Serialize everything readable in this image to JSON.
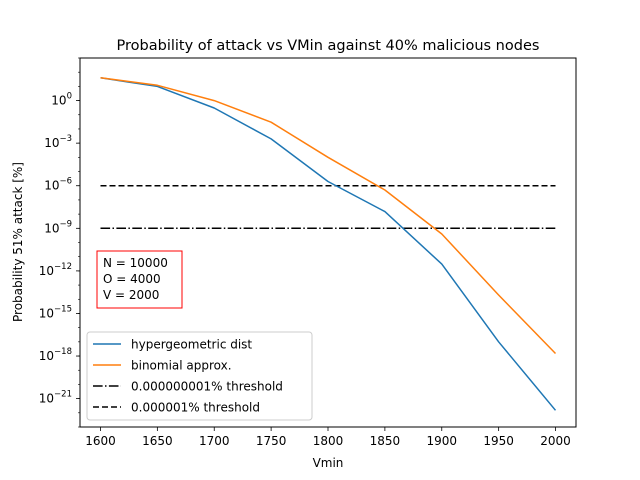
{
  "chart_data": {
    "type": "line",
    "title": "Probability of attack vs VMin against 40% malicious nodes",
    "xlabel": "Vmin",
    "ylabel": "Probability 51% attack [%]",
    "x_scale": "linear",
    "y_scale": "log",
    "xlim": [
      1582,
      2018
    ],
    "ylim": [
      1e-23,
      1000.0
    ],
    "x_ticks": [
      1600,
      1650,
      1700,
      1750,
      1800,
      1850,
      1900,
      1950,
      2000
    ],
    "y_ticks": [
      {
        "value": 1.0,
        "label": "10",
        "exp": "0"
      },
      {
        "value": 0.001,
        "label": "10",
        "exp": "−3"
      },
      {
        "value": 1e-06,
        "label": "10",
        "exp": "−6"
      },
      {
        "value": 1e-09,
        "label": "10",
        "exp": "−9"
      },
      {
        "value": 1e-12,
        "label": "10",
        "exp": "−12"
      },
      {
        "value": 1e-15,
        "label": "10",
        "exp": "−15"
      },
      {
        "value": 1e-18,
        "label": "10",
        "exp": "−18"
      },
      {
        "value": 1e-21,
        "label": "10",
        "exp": "−21"
      }
    ],
    "grid": false,
    "legend_position": "lower-left",
    "x": [
      1600,
      1650,
      1700,
      1750,
      1800,
      1850,
      1900,
      1950,
      2000
    ],
    "series": [
      {
        "name": "hypergeometric dist",
        "color": "#1f77b4",
        "style": "solid",
        "values": [
          40,
          10,
          0.3,
          0.002,
          2e-06,
          1.5e-08,
          3e-12,
          1e-17,
          1.5e-22
        ]
      },
      {
        "name": "binomial approx.",
        "color": "#ff7f0e",
        "style": "solid",
        "values": [
          40,
          12,
          1,
          0.03,
          0.0001,
          5e-07,
          4e-10,
          2e-14,
          1.5e-18
        ]
      },
      {
        "name": "0.000000001% threshold",
        "color": "#000000",
        "style": "dashdot",
        "values": [
          1e-09,
          1e-09,
          1e-09,
          1e-09,
          1e-09,
          1e-09,
          1e-09,
          1e-09,
          1e-09
        ]
      },
      {
        "name": "0.000001% threshold",
        "color": "#000000",
        "style": "dashed",
        "values": [
          1e-06,
          1e-06,
          1e-06,
          1e-06,
          1e-06,
          1e-06,
          1e-06,
          1e-06,
          1e-06
        ]
      }
    ],
    "annotation": {
      "lines": [
        "N = 10000",
        "O = 4000",
        "V = 2000"
      ],
      "border_color": "#ff0000"
    }
  }
}
